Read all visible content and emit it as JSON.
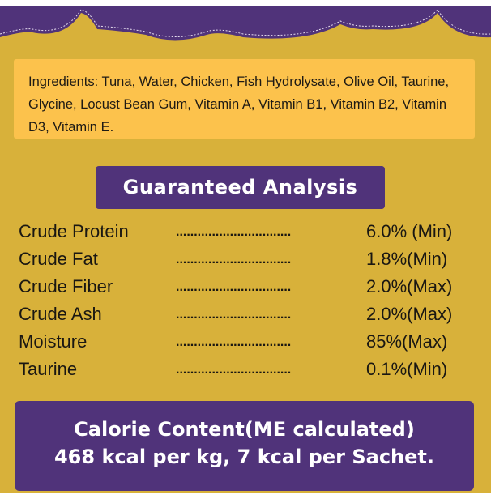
{
  "ingredients": "Ingredients: Tuna, Water, Chicken, Fish Hydrolysate, Olive Oil, Taurine, Glycine, Locust Bean Gum, Vitamin A, Vitamin B1, Vitamin B2, Vitamin D3, Vitamin E.",
  "analysis": {
    "title": "Guaranteed Analysis",
    "dots": "................................",
    "rows": [
      {
        "label": "Crude Protein",
        "value": "6.0% (Min)"
      },
      {
        "label": "Crude Fat",
        "value": "1.8%(Min)"
      },
      {
        "label": "Crude Fiber",
        "value": "2.0%(Max)"
      },
      {
        "label": "Crude Ash",
        "value": "2.0%(Max)"
      },
      {
        "label": "Moisture",
        "value": "85%(Max)"
      },
      {
        "label": "Taurine",
        "value": "0.1%(Min)"
      }
    ]
  },
  "calorie": {
    "line1": "Calorie Content(ME calculated)",
    "line2": "468 kcal per kg, 7 kcal per Sachet."
  },
  "colors": {
    "background": "#d8b13a",
    "purple": "#50337a",
    "ingredients_box": "#fcc24c"
  }
}
